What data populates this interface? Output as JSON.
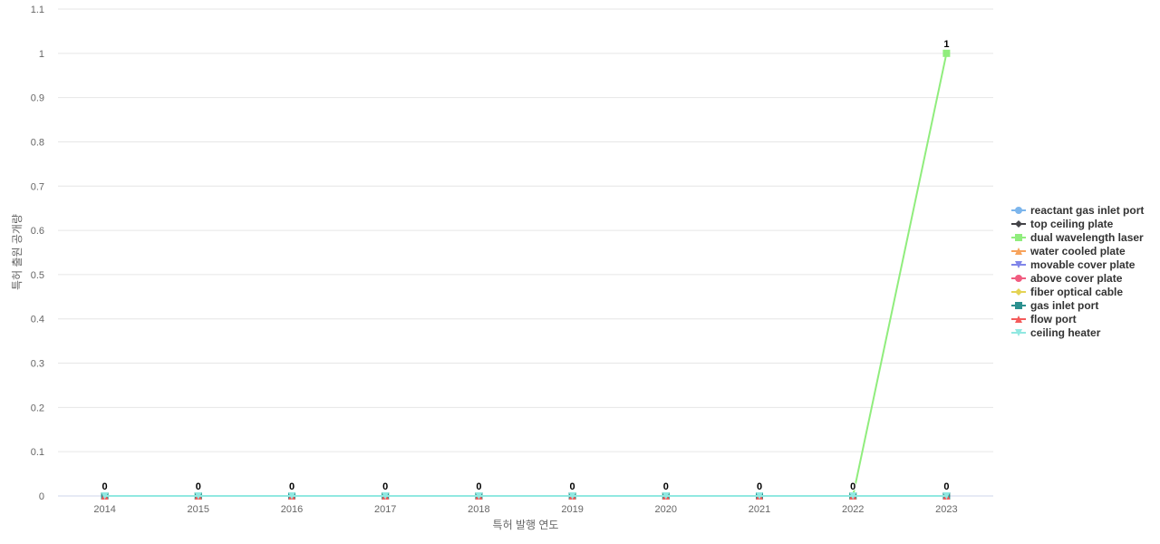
{
  "chart_data": {
    "type": "line",
    "xlabel": "특허 발행 연도",
    "ylabel": "특허 출원 공개량",
    "ylim": [
      0,
      1.1
    ],
    "yticks": [
      "0",
      "0.1",
      "0.2",
      "0.3",
      "0.4",
      "0.5",
      "0.6",
      "0.7",
      "0.8",
      "0.9",
      "1",
      "1.1"
    ],
    "categories": [
      "2014",
      "2015",
      "2016",
      "2017",
      "2018",
      "2019",
      "2020",
      "2021",
      "2022",
      "2023"
    ],
    "grid": true,
    "legend_position": "right",
    "series": [
      {
        "name": "reactant gas inlet port",
        "color": "#7cb5ec",
        "marker": "circle",
        "values": [
          0,
          0,
          0,
          0,
          0,
          0,
          0,
          0,
          0,
          0
        ]
      },
      {
        "name": "top ceiling plate",
        "color": "#434348",
        "marker": "diamond",
        "values": [
          0,
          0,
          0,
          0,
          0,
          0,
          0,
          0,
          0,
          0
        ]
      },
      {
        "name": "dual wavelength laser",
        "color": "#90ed7d",
        "marker": "square",
        "values": [
          0,
          0,
          0,
          0,
          0,
          0,
          0,
          0,
          0,
          1
        ],
        "labels": true
      },
      {
        "name": "water cooled plate",
        "color": "#f7a35c",
        "marker": "triangle",
        "values": [
          0,
          0,
          0,
          0,
          0,
          0,
          0,
          0,
          0,
          0
        ]
      },
      {
        "name": "movable cover plate",
        "color": "#8085e9",
        "marker": "triangle-down",
        "values": [
          0,
          0,
          0,
          0,
          0,
          0,
          0,
          0,
          0,
          0
        ]
      },
      {
        "name": "above cover plate",
        "color": "#f15c80",
        "marker": "circle",
        "values": [
          0,
          0,
          0,
          0,
          0,
          0,
          0,
          0,
          0,
          0
        ]
      },
      {
        "name": "fiber optical cable",
        "color": "#e4d354",
        "marker": "diamond",
        "values": [
          0,
          0,
          0,
          0,
          0,
          0,
          0,
          0,
          0,
          0
        ]
      },
      {
        "name": "gas inlet port",
        "color": "#2b908f",
        "marker": "square",
        "values": [
          0,
          0,
          0,
          0,
          0,
          0,
          0,
          0,
          0,
          0
        ]
      },
      {
        "name": "flow port",
        "color": "#f45b5b",
        "marker": "triangle",
        "values": [
          0,
          0,
          0,
          0,
          0,
          0,
          0,
          0,
          0,
          0
        ]
      },
      {
        "name": "ceiling heater",
        "color": "#91e8e1",
        "marker": "triangle-down",
        "values": [
          0,
          0,
          0,
          0,
          0,
          0,
          0,
          0,
          0,
          0
        ],
        "labels": true
      }
    ]
  }
}
